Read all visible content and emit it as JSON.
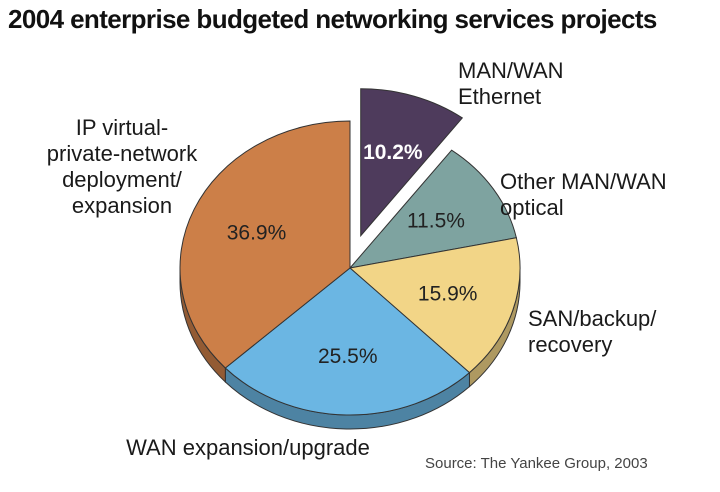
{
  "chart_data": {
    "type": "pie",
    "title": "2004 enterprise budgeted networking services projects",
    "source": "Source: The Yankee Group, 2003",
    "slices": [
      {
        "label": "MAN/WAN Ethernet",
        "label_lines": [
          "MAN/WAN",
          "Ethernet"
        ],
        "value": 10.2,
        "value_label": "10.2%",
        "color": "#4e3b5c",
        "exploded": true
      },
      {
        "label": "Other MAN/WAN optical",
        "label_lines": [
          "Other MAN/WAN",
          "optical"
        ],
        "value": 11.5,
        "value_label": "11.5%",
        "color": "#7ea3a0",
        "exploded": false
      },
      {
        "label": "SAN/backup/recovery",
        "label_lines": [
          "SAN/backup/",
          "recovery"
        ],
        "value": 15.9,
        "value_label": "15.9%",
        "color": "#f2d587",
        "exploded": false
      },
      {
        "label": "WAN expansion/upgrade",
        "label_lines": [
          "WAN expansion/upgrade"
        ],
        "value": 25.5,
        "value_label": "25.5%",
        "color": "#6bb6e3",
        "exploded": false
      },
      {
        "label": "IP virtual-private-network deployment/expansion",
        "label_lines": [
          "IP virtual-",
          "private-network",
          "deployment/",
          "expansion"
        ],
        "value": 36.9,
        "value_label": "36.9%",
        "color": "#cc7f48",
        "exploded": false
      }
    ]
  }
}
